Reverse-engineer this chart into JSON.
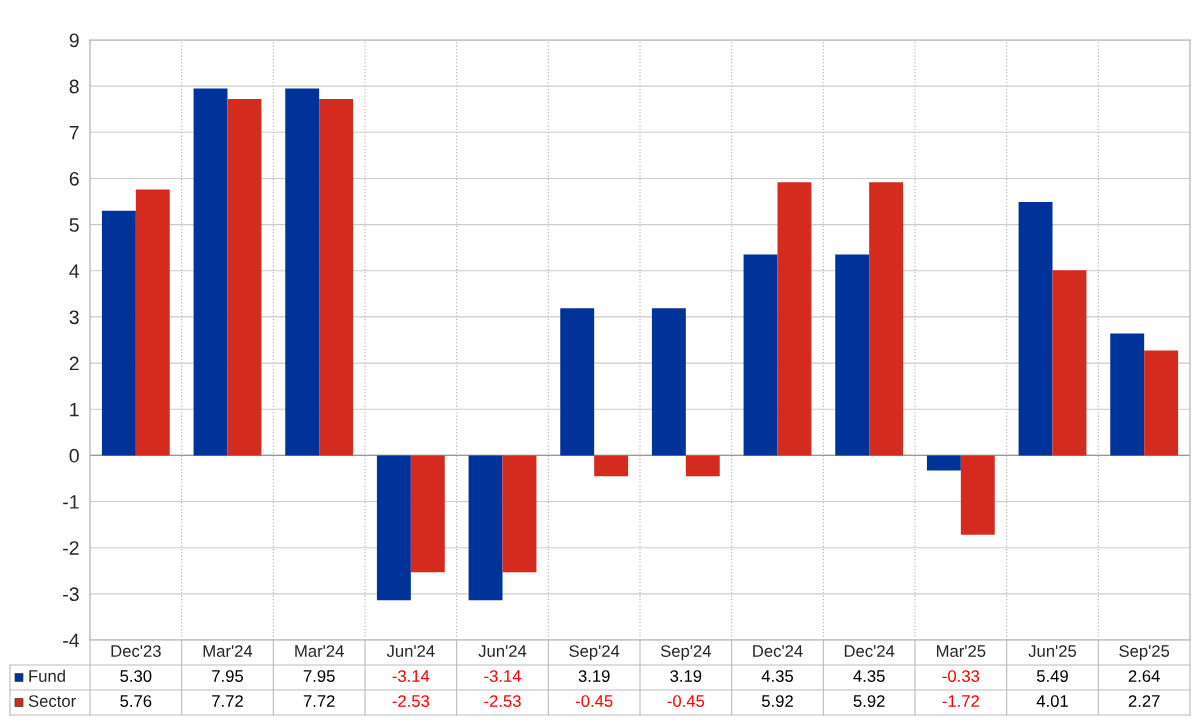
{
  "chart_data": {
    "type": "bar",
    "categories": [
      "Dec'23",
      "Mar'24",
      "Mar'24",
      "Jun'24",
      "Jun'24",
      "Sep'24",
      "Sep'24",
      "Dec'24",
      "Dec'24",
      "Mar'25",
      "Jun'25",
      "Sep'25"
    ],
    "series": [
      {
        "name": "Fund",
        "color": "#003399",
        "values": [
          5.3,
          7.95,
          7.95,
          -3.14,
          -3.14,
          3.19,
          3.19,
          4.35,
          4.35,
          -0.33,
          5.49,
          2.64
        ],
        "value_labels": [
          "5.30",
          "7.95",
          "7.95",
          "-3.14",
          "-3.14",
          "3.19",
          "3.19",
          "4.35",
          "4.35",
          "-0.33",
          "5.49",
          "2.64"
        ]
      },
      {
        "name": "Sector",
        "color": "#d52b1e",
        "values": [
          5.76,
          7.72,
          7.72,
          -2.53,
          -2.53,
          -0.45,
          -0.45,
          5.92,
          5.92,
          -1.72,
          4.01,
          2.27
        ],
        "value_labels": [
          "5.76",
          "7.72",
          "7.72",
          "-2.53",
          "-2.53",
          "-0.45",
          "-0.45",
          "5.92",
          "5.92",
          "-1.72",
          "4.01",
          "2.27"
        ]
      }
    ],
    "ylim": [
      -4,
      9
    ],
    "yticks": [
      -4,
      -3,
      -2,
      -1,
      0,
      1,
      2,
      3,
      4,
      5,
      6,
      7,
      8,
      9
    ],
    "grid": true,
    "legend": "bottom"
  }
}
